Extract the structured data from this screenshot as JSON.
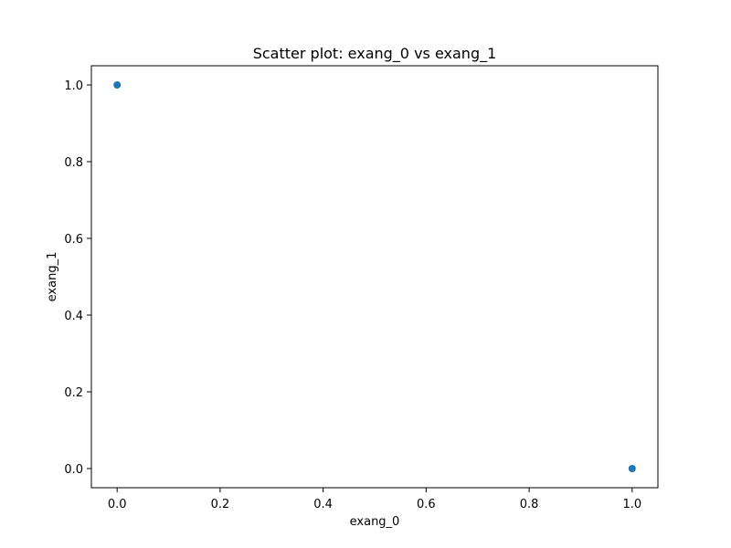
{
  "chart_data": {
    "type": "scatter",
    "title": "Scatter plot: exang_0 vs exang_1",
    "xlabel": "exang_0",
    "ylabel": "exang_1",
    "xlim": [
      -0.05,
      1.05
    ],
    "ylim": [
      -0.05,
      1.05
    ],
    "x_ticks": [
      0.0,
      0.2,
      0.4,
      0.6,
      0.8,
      1.0
    ],
    "x_tick_labels": [
      "0.0",
      "0.2",
      "0.4",
      "0.6",
      "0.8",
      "1.0"
    ],
    "y_ticks": [
      0.0,
      0.2,
      0.4,
      0.6,
      0.8,
      1.0
    ],
    "y_tick_labels": [
      "0.0",
      "0.2",
      "0.4",
      "0.6",
      "0.8",
      "1.0"
    ],
    "grid": false,
    "marker_color": "#1f77b4",
    "points": [
      {
        "x": 0.0,
        "y": 1.0
      },
      {
        "x": 1.0,
        "y": 0.0
      }
    ]
  }
}
